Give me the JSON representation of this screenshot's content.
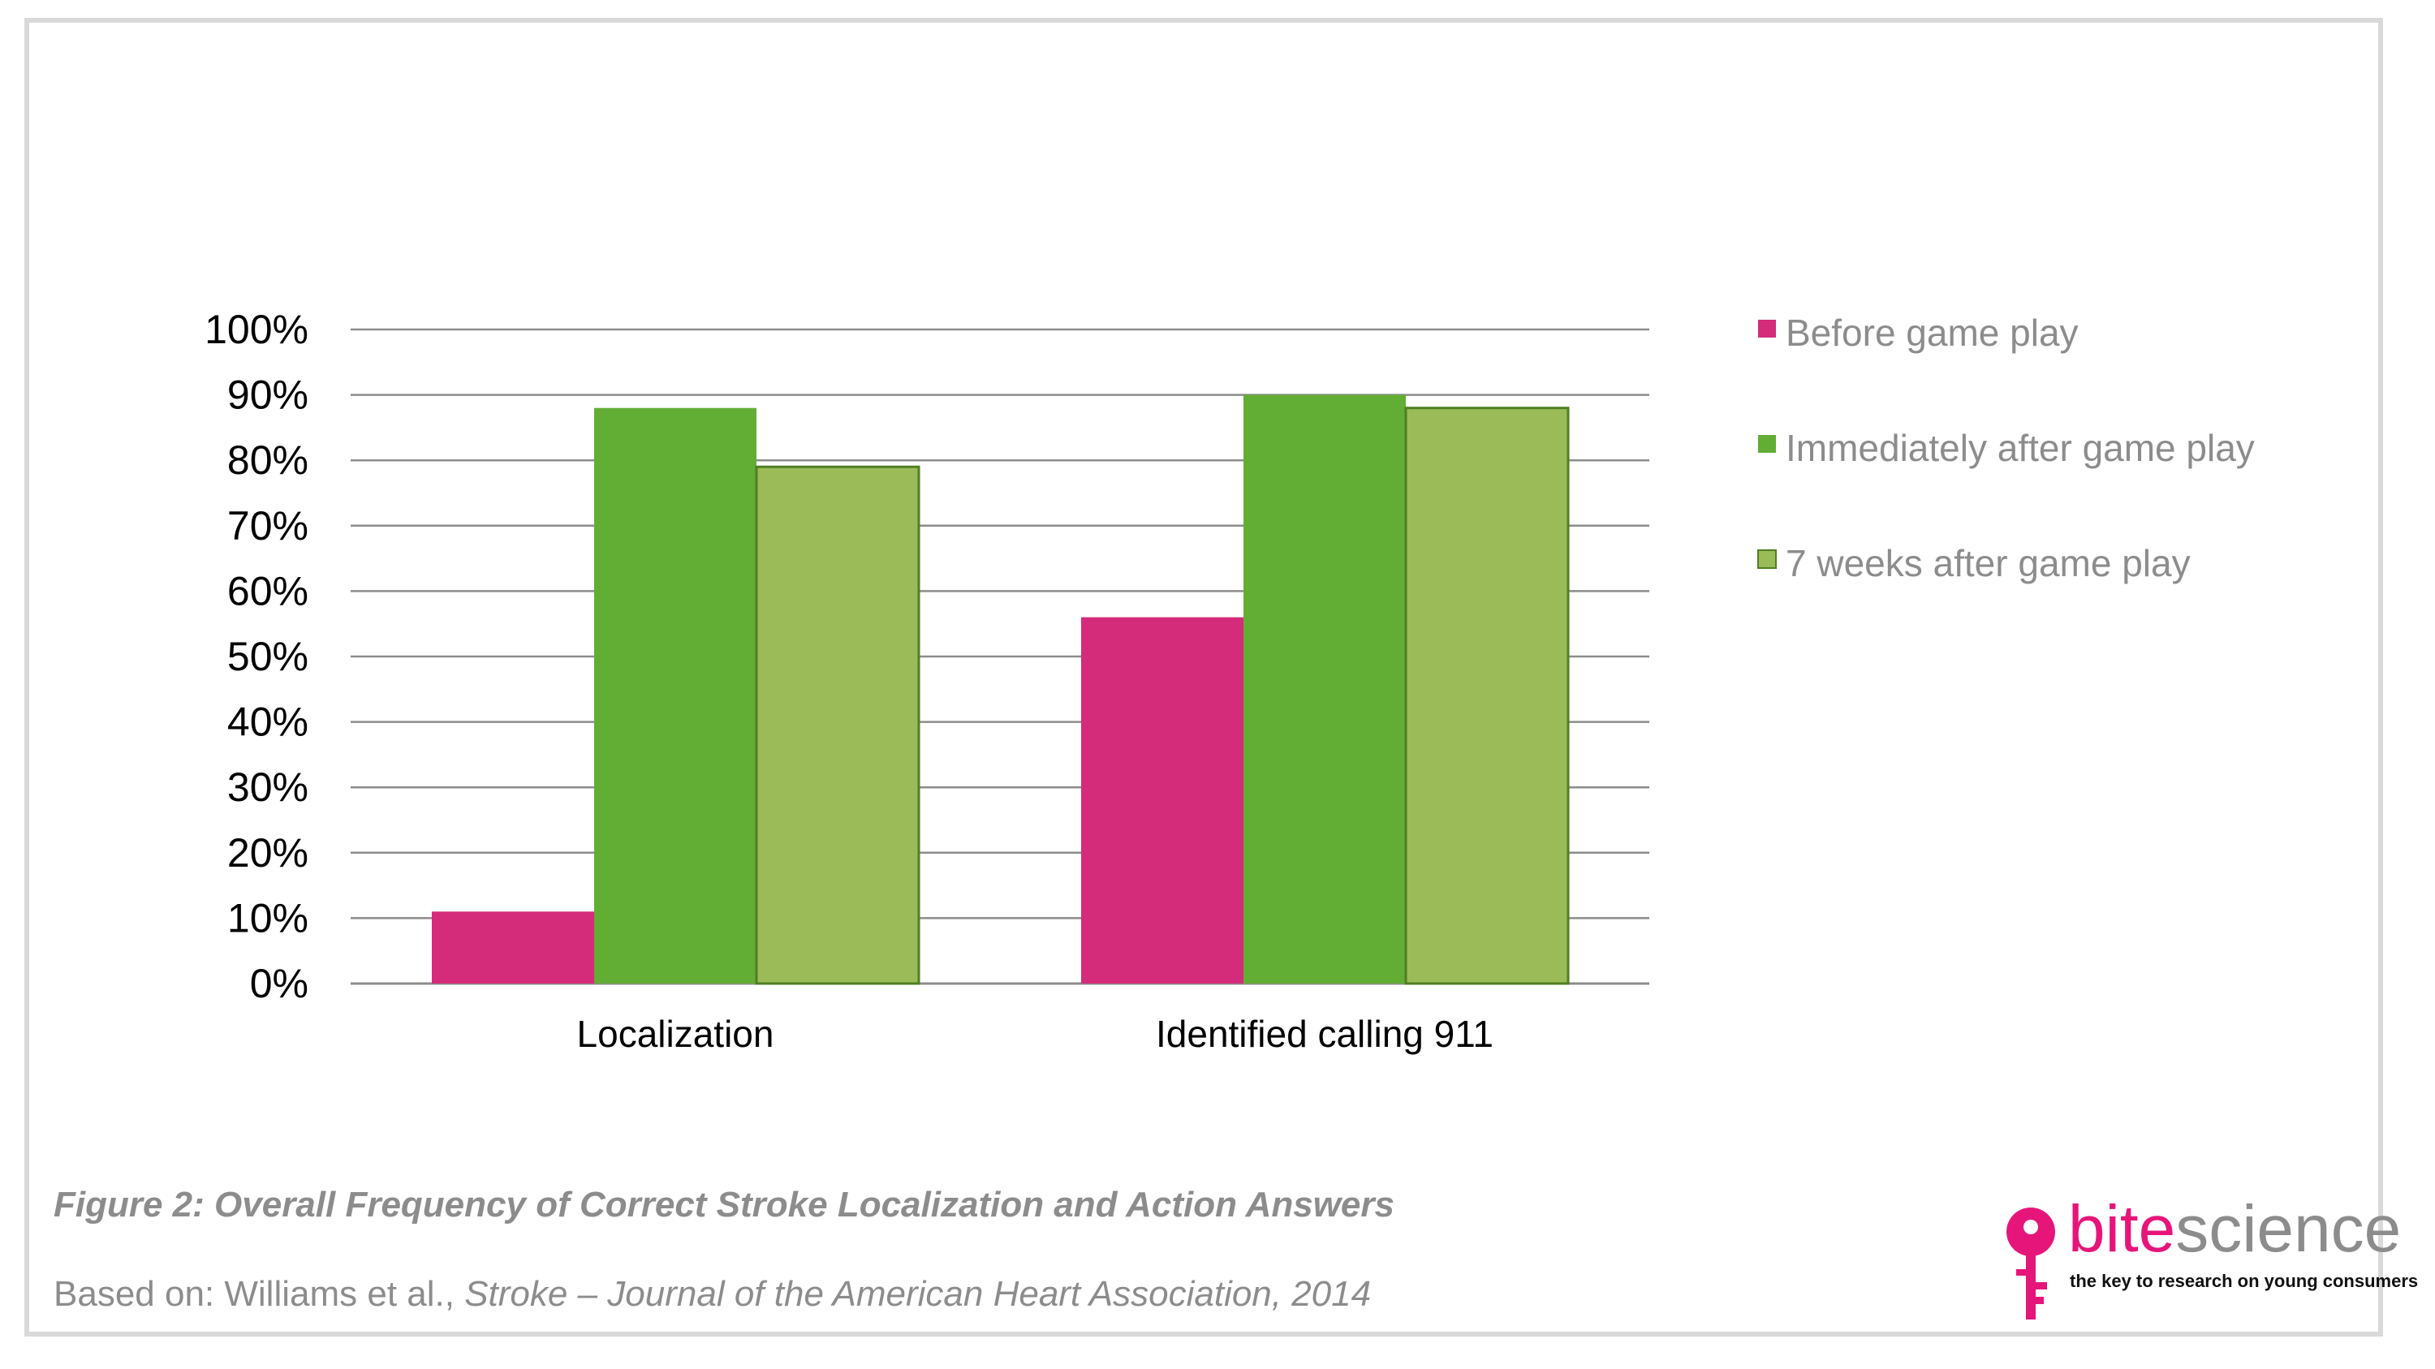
{
  "chart_data": {
    "type": "bar",
    "categories": [
      "Localization",
      "Identified calling 911"
    ],
    "series": [
      {
        "name": "Before game play",
        "values": [
          11,
          56
        ],
        "color": "#d42b7a"
      },
      {
        "name": "Immediately after game play",
        "values": [
          88,
          90
        ],
        "color": "#62ad33"
      },
      {
        "name": "7 weeks after game play",
        "values": [
          79,
          88
        ],
        "color": "#9bbb59"
      }
    ],
    "ylim": [
      0,
      100
    ],
    "yticks": [
      "0%",
      "10%",
      "20%",
      "30%",
      "40%",
      "50%",
      "60%",
      "70%",
      "80%",
      "90%",
      "100%"
    ],
    "grid": true,
    "legend_position": "right",
    "title": "",
    "xlabel": "",
    "ylabel": ""
  },
  "caption": {
    "title": "Figure 2: Overall Frequency of Correct Stroke Localization and Action Answers",
    "source_prefix": "Based on: Williams et al., ",
    "source_italic": "Stroke – Journal of the American Heart Association, 2014"
  },
  "logo": {
    "word_part1": "bite",
    "word_part2": "science",
    "tagline": "the key to research on young consumers",
    "colors": {
      "pink": "#e6157a",
      "gray": "#8c8c8c"
    },
    "icon": "key-icon"
  },
  "colors": {
    "axis_text": "#000000",
    "legend_text": "#8c8c8c",
    "gridline": "#8c8c8c",
    "frame": "#d9d9d9"
  }
}
